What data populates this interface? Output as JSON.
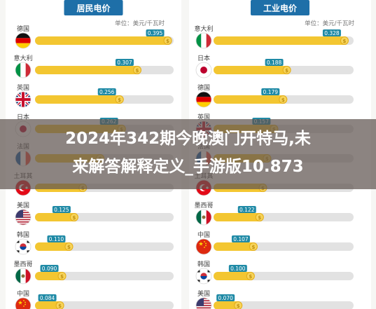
{
  "overlay": {
    "line1": "2024年342期今晚澳门开特马,未",
    "line2": "来解答解释定义_手游版10.873"
  },
  "colors": {
    "bar": "#f3c631",
    "bar_edge": "#e3ad1a",
    "label_bg": "#1f8aa6",
    "header_bg": "#1e6fa8",
    "panel": "#ffffff",
    "rail": "#e2e2e2"
  },
  "chart_data": [
    {
      "type": "bar",
      "orientation": "horizontal",
      "title": "居民电价",
      "unit": "单位：美元/千瓦时",
      "categories": [
        "德国",
        "意大利",
        "英国",
        "日本",
        "法国",
        "土耳其",
        "美国",
        "韩国",
        "墨西哥",
        "中国"
      ],
      "flags": [
        "de-flag-icon",
        "it-flag-icon",
        "gb-flag-icon",
        "jp-flag-icon",
        "fr-flag-icon",
        "tr-flag-icon",
        "us-flag-icon",
        "kr-flag-icon",
        "mx-flag-icon",
        "cn-flag-icon"
      ],
      "values": [
        0.395,
        0.307,
        0.256,
        0.262,
        0.2,
        0.15,
        0.125,
        0.11,
        0.09,
        0.084
      ],
      "value_labels": [
        "0.395",
        "0.307",
        "0.256",
        "0.262",
        "",
        "",
        "0.125",
        "0.110",
        "0.090",
        "0.084"
      ],
      "xlim": [
        0,
        0.4
      ]
    },
    {
      "type": "bar",
      "orientation": "horizontal",
      "title": "工业电价",
      "unit": "单位：美元/千瓦时",
      "categories": [
        "意大利",
        "日本",
        "德国",
        "英国",
        "法国",
        "土耳其",
        "墨西哥",
        "中国",
        "韩国",
        "美国"
      ],
      "flags": [
        "it-flag-icon",
        "jp-flag-icon",
        "de-flag-icon",
        "gb-flag-icon",
        "fr-flag-icon",
        "tr-flag-icon",
        "mx-flag-icon",
        "cn-flag-icon",
        "kr-flag-icon",
        "us-flag-icon"
      ],
      "values": [
        0.328,
        0.188,
        0.179,
        0.157,
        0.14,
        0.13,
        0.122,
        0.107,
        0.1,
        0.07
      ],
      "value_labels": [
        "0.328",
        "0.188",
        "0.179",
        "0.157",
        "",
        "",
        "0.122",
        "0.107",
        "0.100",
        "0.070"
      ],
      "xlim": [
        0,
        0.34
      ]
    }
  ]
}
